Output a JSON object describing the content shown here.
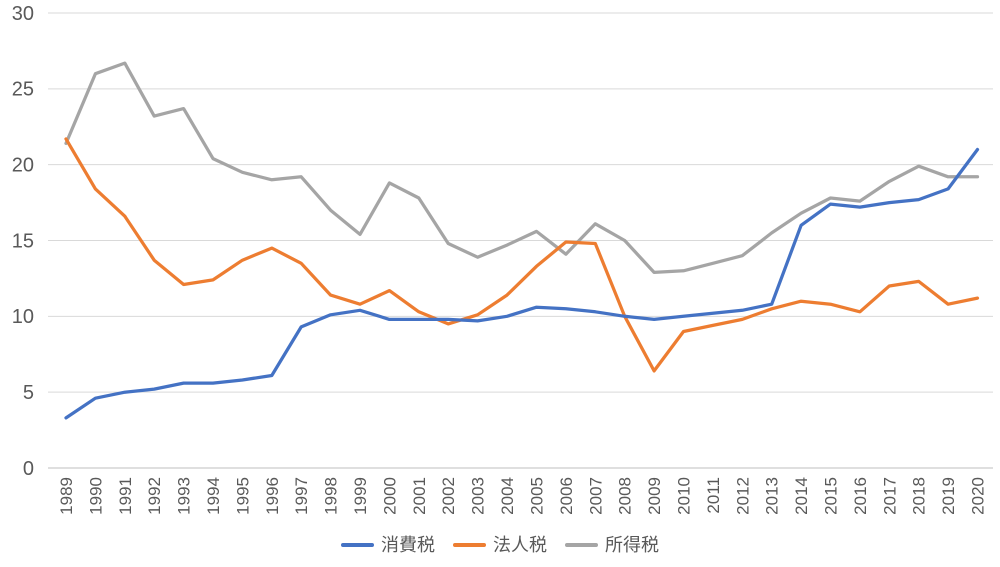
{
  "chart_data": {
    "type": "line",
    "title": "",
    "xlabel": "",
    "ylabel": "",
    "x": [
      "1989",
      "1990",
      "1991",
      "1992",
      "1993",
      "1994",
      "1995",
      "1996",
      "1997",
      "1998",
      "1999",
      "2000",
      "2001",
      "2002",
      "2003",
      "2004",
      "2005",
      "2006",
      "2007",
      "2008",
      "2009",
      "2010",
      "2011",
      "2012",
      "2013",
      "2014",
      "2015",
      "2016",
      "2017",
      "2018",
      "2019",
      "2020"
    ],
    "series": [
      {
        "name": "消費税",
        "color": "#4472C4",
        "values": [
          3.3,
          4.6,
          5.0,
          5.2,
          5.6,
          5.6,
          5.8,
          6.1,
          9.3,
          10.1,
          10.4,
          9.8,
          9.8,
          9.8,
          9.7,
          10.0,
          10.6,
          10.5,
          10.3,
          10.0,
          9.8,
          10.0,
          10.2,
          10.4,
          10.8,
          16.0,
          17.4,
          17.2,
          17.5,
          17.7,
          18.4,
          21.0
        ]
      },
      {
        "name": "法人税",
        "color": "#ED7D31",
        "values": [
          21.7,
          18.4,
          16.6,
          13.7,
          12.1,
          12.4,
          13.7,
          14.5,
          13.5,
          11.4,
          10.8,
          11.7,
          10.3,
          9.5,
          10.1,
          11.4,
          13.3,
          14.9,
          14.8,
          10.0,
          6.4,
          9.0,
          9.4,
          9.8,
          10.5,
          11.0,
          10.8,
          10.3,
          12.0,
          12.3,
          10.8,
          11.2
        ]
      },
      {
        "name": "所得税",
        "color": "#A5A5A5",
        "values": [
          21.4,
          26.0,
          26.7,
          23.2,
          23.7,
          20.4,
          19.5,
          19.0,
          19.2,
          17.0,
          15.4,
          18.8,
          17.8,
          14.8,
          13.9,
          14.7,
          15.6,
          14.1,
          16.1,
          15.0,
          12.9,
          13.0,
          13.5,
          14.0,
          15.5,
          16.8,
          17.8,
          17.6,
          18.9,
          19.9,
          19.2,
          19.2
        ]
      }
    ],
    "ylim": [
      0,
      30
    ],
    "ytick_step": 5,
    "ytick_labels": [
      "0",
      "5",
      "10",
      "15",
      "20",
      "25",
      "30"
    ],
    "grid": true,
    "legend_position": "bottom",
    "x_tick_rotation_deg": -90
  },
  "style": {
    "background": "#FFFFFF",
    "grid_color": "#D9D9D9",
    "zero_axis_color": "#BFBFBF",
    "tick_label_color": "#595959",
    "series_semantic_names": [
      "consumption-tax",
      "corporate-tax",
      "income-tax"
    ]
  }
}
